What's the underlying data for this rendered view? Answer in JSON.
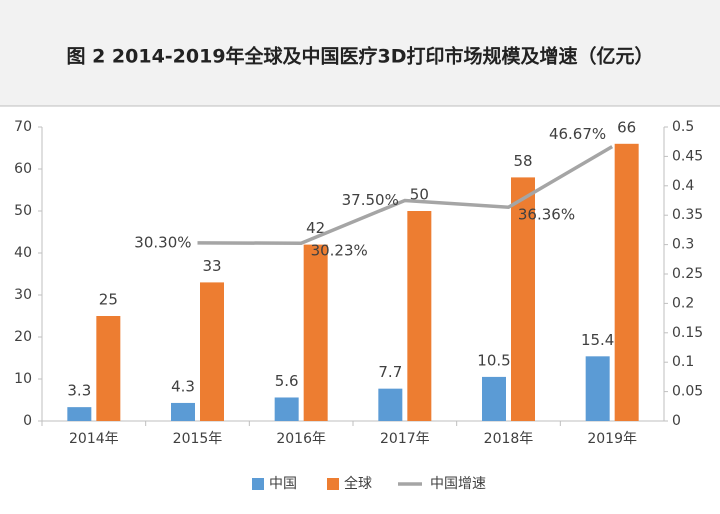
{
  "chart_data": {
    "type": "bar",
    "title": "图 2 2014-2019年全球及中国医疗3D打印市场规模及增速（亿元）",
    "categories": [
      "2014年",
      "2015年",
      "2016年",
      "2017年",
      "2018年",
      "2019年"
    ],
    "series": [
      {
        "name": "中国",
        "color": "#5b9bd5",
        "values": [
          3.3,
          4.3,
          5.6,
          7.7,
          10.5,
          15.4
        ]
      },
      {
        "name": "全球",
        "color": "#ed7d31",
        "values": [
          25,
          33,
          42,
          50,
          58,
          66
        ]
      },
      {
        "name": "中国增速",
        "type": "line",
        "axis": "y2",
        "color": "#a5a5a5",
        "values": [
          null,
          0.303,
          0.3023,
          0.375,
          0.3636,
          0.4667
        ],
        "value_labels": [
          null,
          "30.30%",
          "30.23%",
          "37.50%",
          "36.36%",
          "46.67%"
        ]
      }
    ],
    "ylim": [
      0,
      70
    ],
    "yticks": [
      0,
      10,
      20,
      30,
      40,
      50,
      60,
      70
    ],
    "y2lim": [
      0,
      0.5
    ],
    "y2ticks": [
      0,
      0.05,
      0.1,
      0.15,
      0.2,
      0.25,
      0.3,
      0.35,
      0.4,
      0.45,
      0.5
    ],
    "legend": "bottom"
  }
}
